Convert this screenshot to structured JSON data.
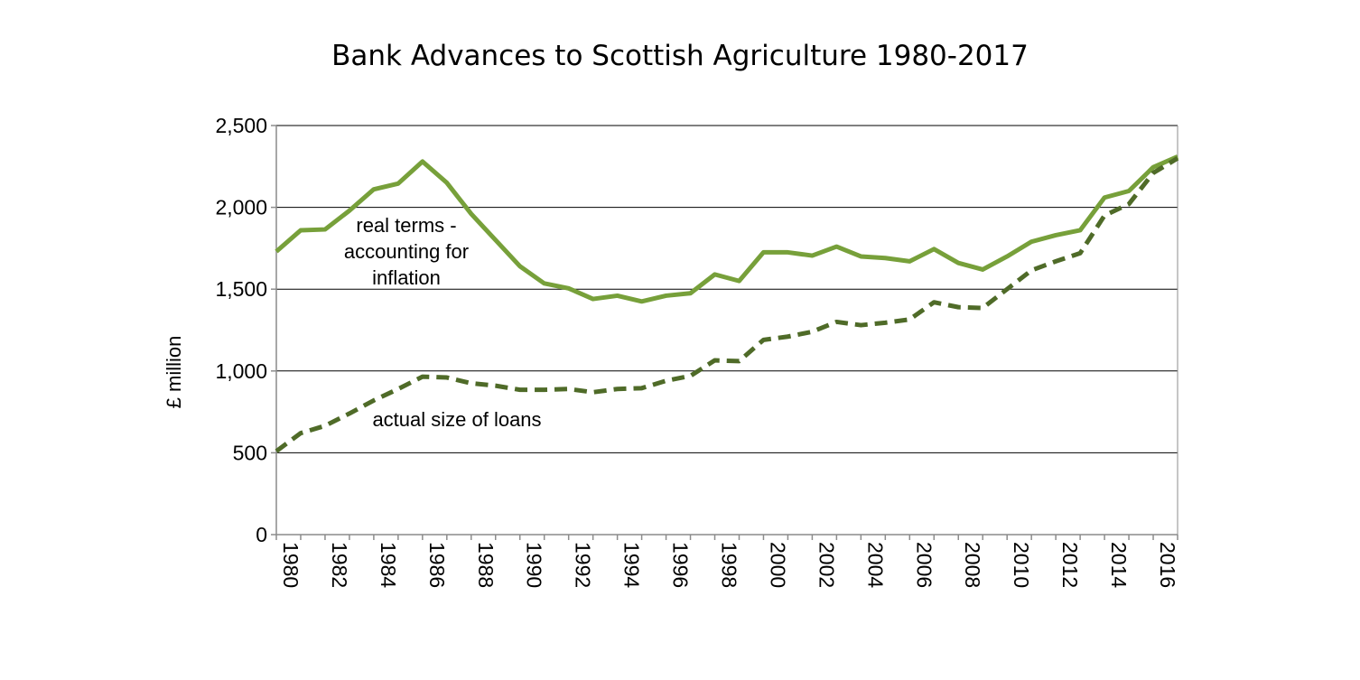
{
  "chart_data": {
    "type": "line",
    "title": "Bank Advances to Scottish Agriculture 1980-2017",
    "xlabel": "",
    "ylabel": "£ million",
    "ylim": [
      0,
      2500
    ],
    "yticks": [
      0,
      500,
      1000,
      1500,
      2000,
      2500
    ],
    "ytick_labels": [
      "0",
      "500",
      "1,000",
      "1,500",
      "2,000",
      "2,500"
    ],
    "xlim": [
      1980,
      2017
    ],
    "xtick_labels": [
      "1980",
      "1982",
      "1984",
      "1986",
      "1988",
      "1990",
      "1992",
      "1994",
      "1996",
      "1998",
      "2000",
      "2002",
      "2004",
      "2006",
      "2008",
      "2010",
      "2012",
      "2014",
      "2016"
    ],
    "grid": true,
    "x": [
      1980,
      1981,
      1982,
      1983,
      1984,
      1985,
      1986,
      1987,
      1988,
      1989,
      1990,
      1991,
      1992,
      1993,
      1994,
      1995,
      1996,
      1997,
      1998,
      1999,
      2000,
      2001,
      2002,
      2003,
      2004,
      2005,
      2006,
      2007,
      2008,
      2009,
      2010,
      2011,
      2012,
      2013,
      2014,
      2015,
      2016,
      2017
    ],
    "series": [
      {
        "name": "real terms - accounting for inflation",
        "label_lines": [
          "real terms -",
          "accounting for",
          "inflation"
        ],
        "color": "#77a03a",
        "style": "solid",
        "values": [
          1730,
          1860,
          1865,
          1980,
          2110,
          2145,
          2280,
          2150,
          1960,
          1800,
          1640,
          1535,
          1505,
          1440,
          1460,
          1425,
          1460,
          1475,
          1590,
          1550,
          1725,
          1725,
          1705,
          1760,
          1700,
          1690,
          1670,
          1745,
          1660,
          1620,
          1700,
          1790,
          1830,
          1860,
          2060,
          2100,
          2245,
          2310
        ]
      },
      {
        "name": "actual size of loans",
        "label_lines": [
          "actual size of loans"
        ],
        "color": "#4f6b28",
        "style": "dashed",
        "values": [
          510,
          620,
          665,
          740,
          820,
          890,
          965,
          960,
          925,
          910,
          885,
          885,
          890,
          870,
          890,
          895,
          940,
          970,
          1065,
          1060,
          1190,
          1210,
          1240,
          1300,
          1280,
          1295,
          1315,
          1420,
          1390,
          1385,
          1500,
          1615,
          1670,
          1720,
          1950,
          2020,
          2210,
          2300
        ]
      }
    ]
  }
}
